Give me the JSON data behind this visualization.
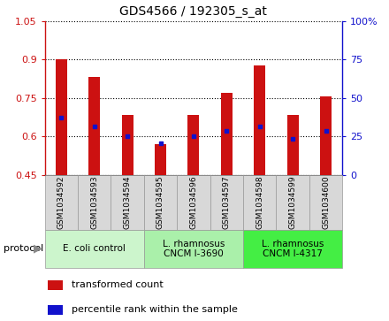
{
  "title": "GDS4566 / 192305_s_at",
  "samples": [
    "GSM1034592",
    "GSM1034593",
    "GSM1034594",
    "GSM1034595",
    "GSM1034596",
    "GSM1034597",
    "GSM1034598",
    "GSM1034599",
    "GSM1034600"
  ],
  "transformed_count": [
    0.902,
    0.83,
    0.685,
    0.57,
    0.685,
    0.77,
    0.875,
    0.685,
    0.755
  ],
  "percentile_rank": [
    0.672,
    0.64,
    0.602,
    0.572,
    0.602,
    0.62,
    0.638,
    0.592,
    0.62
  ],
  "bar_bottom": 0.45,
  "ylim": [
    0.45,
    1.05
  ],
  "y2lim": [
    0,
    100
  ],
  "yticks": [
    0.45,
    0.6,
    0.75,
    0.9,
    1.05
  ],
  "ytick_labels": [
    "0.45",
    "0.6",
    "0.75",
    "0.9",
    "1.05"
  ],
  "y2ticks": [
    0,
    25,
    50,
    75,
    100
  ],
  "y2tick_labels": [
    "0",
    "25",
    "50",
    "75",
    "100%"
  ],
  "groups": [
    {
      "label": "E. coli control",
      "start": 0,
      "end": 3,
      "color": "#ccf5cc"
    },
    {
      "label": "L. rhamnosus\nCNCM I-3690",
      "start": 3,
      "end": 6,
      "color": "#aaf0aa"
    },
    {
      "label": "L. rhamnosus\nCNCM I-4317",
      "start": 6,
      "end": 9,
      "color": "#44ee44"
    }
  ],
  "sample_bg_color": "#d8d8d8",
  "bar_color": "#cc1111",
  "dot_color": "#1111cc",
  "bar_width": 0.35,
  "figsize": [
    4.4,
    3.63
  ],
  "dpi": 100,
  "legend_items": [
    {
      "label": "transformed count",
      "color": "#cc1111"
    },
    {
      "label": "percentile rank within the sample",
      "color": "#1111cc"
    }
  ]
}
